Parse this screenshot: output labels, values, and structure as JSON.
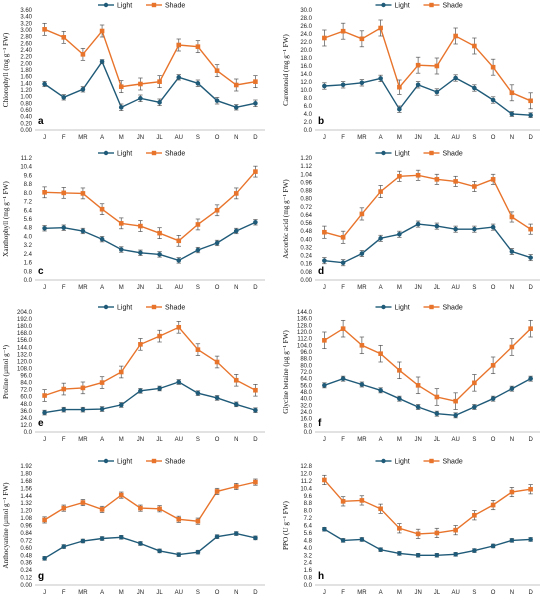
{
  "months": [
    "J",
    "F",
    "MR",
    "A",
    "M",
    "JN",
    "JL",
    "AU",
    "S",
    "O",
    "N",
    "D"
  ],
  "colors": {
    "light": "#1f5a78",
    "shade": "#e8742c",
    "axis": "#b0b0b0"
  },
  "chart_data": [
    {
      "type": "line",
      "letter": "a",
      "ylabel": "Chlorophyll (mg g⁻¹ FW)",
      "ylim": [
        0,
        3.6
      ],
      "yticks": [
        "0.00",
        "0.20",
        "0.40",
        "0.60",
        "0.80",
        "1.00",
        "1.20",
        "1.40",
        "1.60",
        "1.80",
        "2.00",
        "2.20",
        "2.40",
        "2.60",
        "2.80",
        "3.00",
        "3.20",
        "3.40",
        "3.60"
      ],
      "legend": [
        "Light",
        "Shade"
      ],
      "series": [
        {
          "name": "Light",
          "values": [
            1.38,
            0.98,
            1.22,
            2.05,
            0.68,
            0.95,
            0.83,
            1.58,
            1.4,
            0.88,
            0.68,
            0.8
          ],
          "errors": [
            0.08,
            0.08,
            0.08,
            0.06,
            0.1,
            0.1,
            0.1,
            0.08,
            0.1,
            0.1,
            0.08,
            0.1
          ]
        },
        {
          "name": "Shade",
          "values": [
            3.02,
            2.78,
            2.27,
            2.97,
            1.3,
            1.38,
            1.45,
            2.55,
            2.5,
            1.78,
            1.35,
            1.45
          ],
          "errors": [
            0.18,
            0.18,
            0.18,
            0.18,
            0.18,
            0.18,
            0.18,
            0.18,
            0.18,
            0.18,
            0.18,
            0.18
          ]
        }
      ]
    },
    {
      "type": "line",
      "letter": "b",
      "ylabel": "Carotenoid (mg g⁻¹ FW)",
      "ylim": [
        0,
        30
      ],
      "yticks": [
        "0.0",
        "2.0",
        "4.0",
        "6.0",
        "8.0",
        "10.0",
        "12.0",
        "14.0",
        "16.0",
        "18.0",
        "20.0",
        "22.0",
        "24.0",
        "26.0",
        "28.0",
        "30.0"
      ],
      "legend": [
        "Light",
        "Shade"
      ],
      "series": [
        {
          "name": "Light",
          "values": [
            11.0,
            11.3,
            11.8,
            12.9,
            5.2,
            11.3,
            9.5,
            13.0,
            10.5,
            7.5,
            4.0,
            3.7
          ],
          "errors": [
            0.8,
            0.8,
            0.8,
            0.8,
            0.8,
            0.8,
            0.8,
            0.8,
            0.8,
            0.8,
            0.6,
            0.6
          ]
        },
        {
          "name": "Shade",
          "values": [
            23.0,
            24.7,
            22.8,
            25.5,
            10.7,
            16.2,
            16.0,
            23.5,
            21.0,
            15.7,
            9.3,
            7.3
          ],
          "errors": [
            2.0,
            2.0,
            2.0,
            2.0,
            1.8,
            2.0,
            2.0,
            2.0,
            2.0,
            2.0,
            2.0,
            2.0
          ]
        }
      ]
    },
    {
      "type": "line",
      "letter": "c",
      "ylabel": "Xanthophyll (mg g⁻¹ FW)",
      "ylim": [
        0,
        11.2
      ],
      "yticks": [
        "0.0",
        "0.8",
        "1.6",
        "2.4",
        "3.2",
        "4.0",
        "4.8",
        "5.6",
        "6.4",
        "7.2",
        "8.0",
        "8.8",
        "9.6",
        "10.4",
        "11.2"
      ],
      "legend": [
        "Light",
        "Shade"
      ],
      "series": [
        {
          "name": "Light",
          "values": [
            4.75,
            4.8,
            4.5,
            3.75,
            2.8,
            2.5,
            2.35,
            1.8,
            2.75,
            3.4,
            4.5,
            5.3
          ],
          "errors": [
            0.25,
            0.25,
            0.25,
            0.25,
            0.25,
            0.25,
            0.25,
            0.25,
            0.25,
            0.25,
            0.25,
            0.25
          ]
        },
        {
          "name": "Shade",
          "values": [
            8.05,
            8.0,
            7.95,
            6.5,
            5.2,
            4.95,
            4.3,
            3.6,
            5.1,
            6.4,
            7.95,
            9.95
          ],
          "errors": [
            0.5,
            0.5,
            0.5,
            0.5,
            0.5,
            0.5,
            0.5,
            0.5,
            0.5,
            0.5,
            0.5,
            0.5
          ]
        }
      ]
    },
    {
      "type": "line",
      "letter": "d",
      "ylabel": "Ascorbic acid (mg g⁻¹ FW)",
      "ylim": [
        0,
        1.2
      ],
      "yticks": [
        "0.00",
        "0.08",
        "0.16",
        "0.24",
        "0.32",
        "0.40",
        "0.48",
        "0.56",
        "0.64",
        "0.72",
        "0.80",
        "0.88",
        "0.96",
        "1.04",
        "1.12",
        "1.20"
      ],
      "legend": [
        "Light",
        "Shade"
      ],
      "series": [
        {
          "name": "Light",
          "values": [
            0.19,
            0.17,
            0.26,
            0.41,
            0.45,
            0.55,
            0.53,
            0.5,
            0.5,
            0.52,
            0.28,
            0.22
          ],
          "errors": [
            0.03,
            0.03,
            0.03,
            0.03,
            0.03,
            0.03,
            0.03,
            0.03,
            0.03,
            0.03,
            0.03,
            0.03
          ]
        },
        {
          "name": "Shade",
          "values": [
            0.47,
            0.42,
            0.65,
            0.87,
            1.02,
            1.03,
            0.99,
            0.97,
            0.92,
            0.99,
            0.62,
            0.5
          ],
          "errors": [
            0.06,
            0.06,
            0.06,
            0.06,
            0.05,
            0.05,
            0.05,
            0.05,
            0.05,
            0.05,
            0.05,
            0.05
          ]
        }
      ]
    },
    {
      "type": "line",
      "letter": "e",
      "ylabel": "Proline (µmol g⁻¹)",
      "ylim": [
        0,
        204
      ],
      "yticks": [
        "0.0",
        "12.0",
        "24.0",
        "36.0",
        "48.0",
        "60.0",
        "72.0",
        "84.0",
        "96.0",
        "108.0",
        "120.0",
        "132.0",
        "144.0",
        "156.0",
        "168.0",
        "180.0",
        "192.0",
        "204.0"
      ],
      "legend": [
        "Light",
        "Shade"
      ],
      "series": [
        {
          "name": "Light",
          "values": [
            33,
            38,
            38,
            39,
            46,
            70,
            74,
            85,
            66,
            58,
            47,
            37
          ],
          "errors": [
            4,
            4,
            4,
            4,
            4,
            4,
            4,
            4,
            4,
            4,
            4,
            4
          ]
        },
        {
          "name": "Shade",
          "values": [
            62,
            73,
            75,
            84,
            102,
            149,
            163,
            178,
            140,
            119,
            88,
            71
          ],
          "errors": [
            10,
            10,
            10,
            10,
            10,
            10,
            10,
            10,
            10,
            10,
            10,
            10
          ]
        }
      ]
    },
    {
      "type": "line",
      "letter": "f",
      "ylabel": "Glycine betaine (µg g⁻¹ FW)",
      "ylim": [
        0,
        144
      ],
      "yticks": [
        "0.0",
        "8.0",
        "16.0",
        "24.0",
        "32.0",
        "40.0",
        "48.0",
        "56.0",
        "64.0",
        "72.0",
        "80.0",
        "88.0",
        "96.0",
        "104.0",
        "112.0",
        "120.0",
        "128.0",
        "136.0",
        "144.0"
      ],
      "legend": [
        "Light",
        "Shade"
      ],
      "series": [
        {
          "name": "Light",
          "values": [
            56,
            64,
            57,
            50,
            40,
            30,
            22,
            20,
            30,
            40,
            52,
            64
          ],
          "errors": [
            3,
            3,
            3,
            3,
            3,
            3,
            3,
            3,
            3,
            3,
            3,
            3
          ]
        },
        {
          "name": "Shade",
          "values": [
            110,
            124,
            104,
            94,
            74,
            56,
            42,
            37,
            59,
            80,
            102,
            124
          ],
          "errors": [
            10,
            10,
            10,
            10,
            10,
            10,
            10,
            10,
            10,
            10,
            10,
            10
          ]
        }
      ]
    },
    {
      "type": "line",
      "letter": "g",
      "ylabel": "Anthocyanine (µmol g⁻¹ FW)",
      "ylim": [
        0,
        1.92
      ],
      "yticks": [
        "0.00",
        "0.12",
        "0.24",
        "0.36",
        "0.48",
        "0.60",
        "0.72",
        "0.84",
        "0.96",
        "1.08",
        "1.20",
        "1.32",
        "1.44",
        "1.56",
        "1.68",
        "1.80",
        "1.92"
      ],
      "legend": [
        "Light",
        "Shade"
      ],
      "series": [
        {
          "name": "Light",
          "values": [
            0.43,
            0.62,
            0.71,
            0.75,
            0.77,
            0.67,
            0.55,
            0.49,
            0.53,
            0.78,
            0.83,
            0.76
          ],
          "errors": [
            0.03,
            0.03,
            0.03,
            0.03,
            0.03,
            0.03,
            0.03,
            0.03,
            0.03,
            0.03,
            0.03,
            0.03
          ]
        },
        {
          "name": "Shade",
          "values": [
            1.05,
            1.24,
            1.33,
            1.22,
            1.45,
            1.24,
            1.23,
            1.06,
            1.03,
            1.51,
            1.59,
            1.66
          ],
          "errors": [
            0.05,
            0.05,
            0.05,
            0.05,
            0.05,
            0.05,
            0.05,
            0.05,
            0.05,
            0.05,
            0.05,
            0.05
          ]
        }
      ]
    },
    {
      "type": "line",
      "letter": "h",
      "ylabel": "PPO (U g⁻¹ FW)",
      "ylim": [
        0,
        12.8
      ],
      "yticks": [
        "0.0",
        "0.8",
        "1.6",
        "2.4",
        "3.2",
        "4.0",
        "4.8",
        "5.6",
        "6.4",
        "7.2",
        "8.0",
        "8.8",
        "9.6",
        "10.4",
        "11.2",
        "12.0",
        "12.8"
      ],
      "legend": [
        "Light",
        "Shade"
      ],
      "series": [
        {
          "name": "Light",
          "values": [
            6.0,
            4.8,
            4.9,
            3.8,
            3.4,
            3.2,
            3.2,
            3.3,
            3.7,
            4.2,
            4.8,
            4.9
          ],
          "errors": [
            0.2,
            0.2,
            0.2,
            0.2,
            0.2,
            0.2,
            0.2,
            0.2,
            0.2,
            0.2,
            0.2,
            0.2
          ]
        },
        {
          "name": "Shade",
          "values": [
            11.3,
            9.0,
            9.1,
            8.2,
            6.1,
            5.5,
            5.6,
            5.9,
            7.5,
            8.6,
            10.0,
            10.3
          ],
          "errors": [
            0.5,
            0.5,
            0.5,
            0.5,
            0.5,
            0.5,
            0.5,
            0.5,
            0.5,
            0.5,
            0.5,
            0.5
          ]
        }
      ]
    }
  ]
}
